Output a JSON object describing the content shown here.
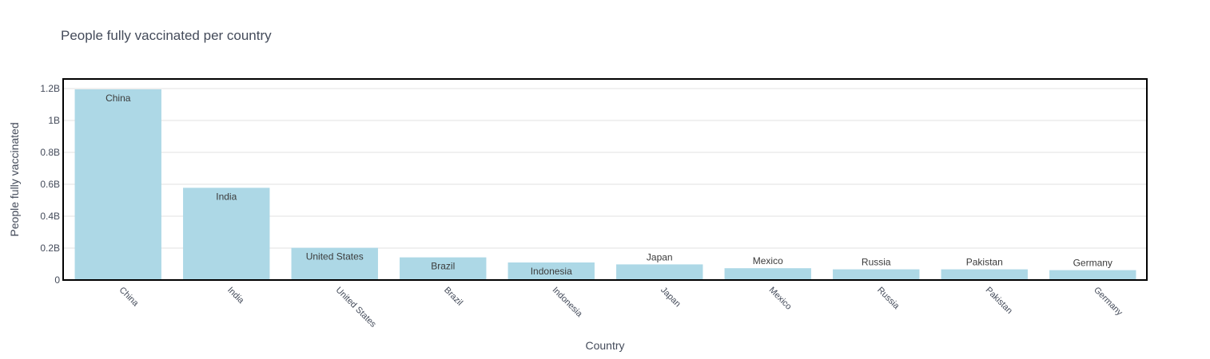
{
  "chart_data": {
    "type": "bar",
    "title": "People fully vaccinated per country",
    "xlabel": "Country",
    "ylabel": "People fully vaccinated",
    "categories": [
      "China",
      "India",
      "United States",
      "Brazil",
      "Indonesia",
      "Japan",
      "Mexico",
      "Russia",
      "Pakistan",
      "Germany"
    ],
    "values": [
      1195000000,
      578000000,
      202000000,
      142000000,
      110000000,
      98000000,
      74000000,
      67000000,
      67000000,
      62000000
    ],
    "ylim": [
      0,
      1255000000
    ],
    "yticks": [
      0,
      200000000,
      400000000,
      600000000,
      800000000,
      1000000000,
      1200000000
    ],
    "ytick_labels": [
      "0",
      "0.2B",
      "0.4B",
      "0.6B",
      "0.8B",
      "1B",
      "1.2B"
    ],
    "bar_labels": [
      "China",
      "India",
      "United States",
      "Brazil",
      "Indonesia",
      "Japan",
      "Mexico",
      "Russia",
      "Pakistan",
      "Germany"
    ],
    "grid": true,
    "bar_color": "#add8e6",
    "frame_color": "#000000"
  }
}
